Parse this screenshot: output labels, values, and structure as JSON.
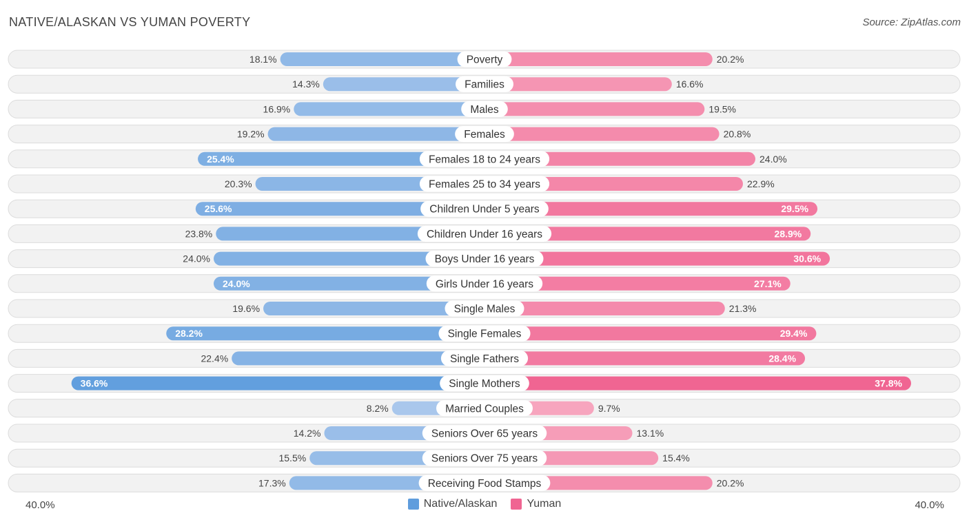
{
  "header": {
    "title": "NATIVE/ALASKAN VS YUMAN POVERTY",
    "source": "Source: ZipAtlas.com"
  },
  "colors": {
    "left_light": "#a9c7ec",
    "left_dark": "#5f9ddd",
    "right_light": "#f7a8c0",
    "right_dark": "#f06592",
    "row_bg": "#f2f2f2",
    "row_border": "#dcdcdc"
  },
  "legend": {
    "left_label": "Native/Alaskan",
    "right_label": "Yuman"
  },
  "axis": {
    "left_label": "40.0%",
    "right_label": "40.0%"
  },
  "chart_data": {
    "type": "bar",
    "orientation": "horizontal-diverging",
    "title": "NATIVE/ALASKAN VS YUMAN POVERTY",
    "xlim": [
      0,
      40
    ],
    "categories": [
      "Poverty",
      "Families",
      "Males",
      "Females",
      "Females 18 to 24 years",
      "Females 25 to 34 years",
      "Children Under 5 years",
      "Children Under 16 years",
      "Boys Under 16 years",
      "Girls Under 16 years",
      "Single Males",
      "Single Females",
      "Single Fathers",
      "Single Mothers",
      "Married Couples",
      "Seniors Over 65 years",
      "Seniors Over 75 years",
      "Receiving Food Stamps"
    ],
    "series": [
      {
        "name": "Native/Alaskan",
        "values": [
          18.1,
          14.3,
          16.9,
          19.2,
          25.4,
          20.3,
          25.6,
          23.8,
          24.0,
          24.0,
          19.6,
          28.2,
          22.4,
          36.6,
          8.2,
          14.2,
          15.5,
          17.3
        ],
        "labels": [
          "18.1%",
          "14.3%",
          "16.9%",
          "19.2%",
          "25.4%",
          "20.3%",
          "25.6%",
          "23.8%",
          "24.0%",
          "24.0%",
          "19.6%",
          "28.2%",
          "22.4%",
          "36.6%",
          "8.2%",
          "14.2%",
          "15.5%",
          "17.3%"
        ],
        "label_inside": [
          false,
          false,
          false,
          false,
          true,
          false,
          true,
          false,
          false,
          true,
          false,
          true,
          false,
          true,
          false,
          false,
          false,
          false
        ]
      },
      {
        "name": "Yuman",
        "values": [
          20.2,
          16.6,
          19.5,
          20.8,
          24.0,
          22.9,
          29.5,
          28.9,
          30.6,
          27.1,
          21.3,
          29.4,
          28.4,
          37.8,
          9.7,
          13.1,
          15.4,
          20.2
        ],
        "labels": [
          "20.2%",
          "16.6%",
          "19.5%",
          "20.8%",
          "24.0%",
          "22.9%",
          "29.5%",
          "28.9%",
          "30.6%",
          "27.1%",
          "21.3%",
          "29.4%",
          "28.4%",
          "37.8%",
          "9.7%",
          "13.1%",
          "15.4%",
          "20.2%"
        ],
        "label_inside": [
          false,
          false,
          false,
          false,
          false,
          false,
          true,
          true,
          true,
          true,
          false,
          true,
          true,
          true,
          false,
          false,
          false,
          false
        ]
      }
    ]
  }
}
